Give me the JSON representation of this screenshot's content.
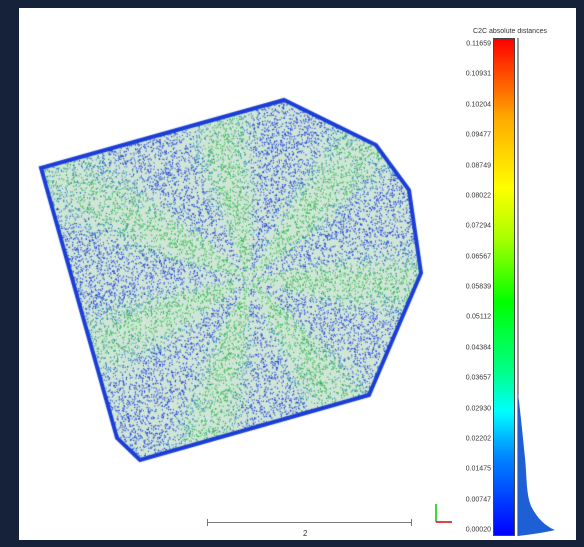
{
  "viewer": {
    "scalar_field_title": "C2C absolute distances",
    "scale_ticks": [
      "0.11659",
      "0.10931",
      "0.10204",
      "0.09477",
      "0.08749",
      "0.08022",
      "0.07294",
      "0.06567",
      "0.05839",
      "0.05112",
      "0.04384",
      "0.03657",
      "0.02930",
      "0.02202",
      "0.01475",
      "0.00747",
      "0.00020"
    ],
    "scale_bar_label": "2",
    "colors": {
      "background": "#16213a",
      "viewport": "#ffffff",
      "point_blue": "#1a3ed6",
      "point_green": "#2bb54a",
      "histogram": "#1f5fd6"
    }
  }
}
